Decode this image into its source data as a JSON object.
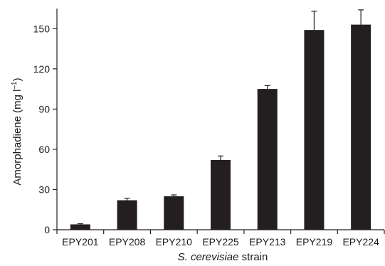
{
  "chart_data": {
    "type": "bar",
    "categories": [
      "EPY201",
      "EPY208",
      "EPY210",
      "EPY225",
      "EPY213",
      "EPY219",
      "EPY224"
    ],
    "values": [
      4,
      22,
      25,
      52,
      105,
      149,
      153
    ],
    "errors": [
      0.5,
      1.5,
      1,
      3,
      2.5,
      14,
      11
    ],
    "ylabel_main": "Amorphadiene (mg l",
    "ylabel_sup": "–1",
    "ylabel_end": ")",
    "xlabel_italic": "S. cerevisiae",
    "xlabel_rest": " strain",
    "ylim": [
      0,
      165
    ],
    "yticks": [
      0,
      30,
      60,
      90,
      120,
      150
    ],
    "grid": false,
    "colors": {
      "bar": "#231f20",
      "axis": "#231f20"
    }
  }
}
